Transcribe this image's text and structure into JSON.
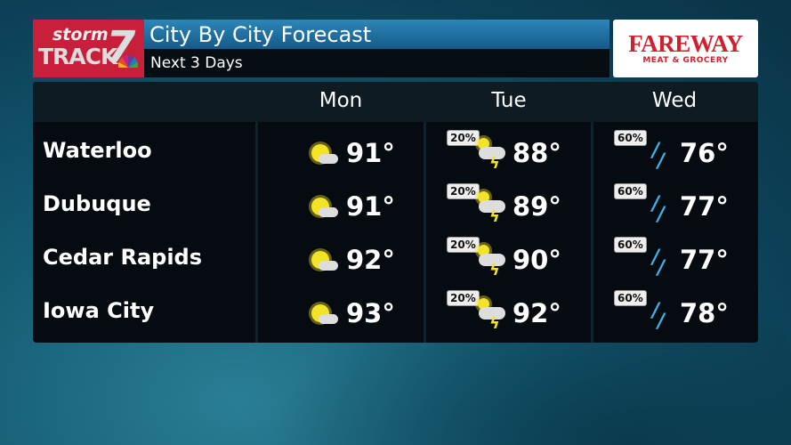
{
  "header": {
    "logo_text": "storm TRACK 7",
    "title": "City By City Forecast",
    "subtitle": "Next 3 Days"
  },
  "sponsor": {
    "name": "FAREWAY",
    "tagline": "MEAT & GROCERY"
  },
  "days": [
    "Mon",
    "Tue",
    "Wed"
  ],
  "rows": [
    {
      "city": "Waterloo",
      "mon": {
        "icon": "sun-cloud-icon",
        "temp": "91°"
      },
      "tue": {
        "pop": "20%",
        "icon": "thunderstorm-icon",
        "temp": "88°"
      },
      "wed": {
        "pop": "60%",
        "icon": "rain-drops-icon",
        "temp": "76°"
      }
    },
    {
      "city": "Dubuque",
      "mon": {
        "icon": "sun-cloud-icon",
        "temp": "91°"
      },
      "tue": {
        "pop": "20%",
        "icon": "thunderstorm-icon",
        "temp": "89°"
      },
      "wed": {
        "pop": "60%",
        "icon": "rain-drops-icon",
        "temp": "77°"
      }
    },
    {
      "city": "Cedar Rapids",
      "mon": {
        "icon": "sun-cloud-icon",
        "temp": "92°"
      },
      "tue": {
        "pop": "20%",
        "icon": "thunderstorm-icon",
        "temp": "90°"
      },
      "wed": {
        "pop": "60%",
        "icon": "rain-drops-icon",
        "temp": "77°"
      }
    },
    {
      "city": "Iowa City",
      "mon": {
        "icon": "sun-cloud-icon",
        "temp": "93°"
      },
      "tue": {
        "pop": "20%",
        "icon": "thunderstorm-icon",
        "temp": "92°"
      },
      "wed": {
        "pop": "60%",
        "icon": "rain-drops-icon",
        "temp": "78°"
      }
    }
  ],
  "colors": {
    "logo_red": "#c8203a",
    "title_blue": "#2d86b8",
    "sun": "#f3e226",
    "rain": "#3bb5e6",
    "sponsor_red": "#d0202e"
  }
}
